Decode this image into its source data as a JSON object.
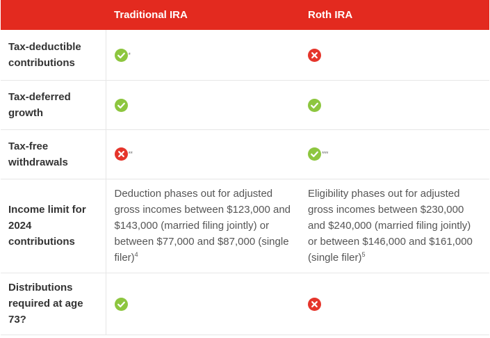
{
  "header": {
    "col1": "",
    "col2": "Traditional IRA",
    "col3": "Roth IRA"
  },
  "colors": {
    "header_bg": "#e32a1f",
    "check": "#8dc63f",
    "cross": "#e5352b"
  },
  "rows": [
    {
      "label": "Tax-deductible contributions",
      "traditional": {
        "icon": "check-icon",
        "note": "*"
      },
      "roth": {
        "icon": "cross-icon",
        "note": ""
      }
    },
    {
      "label": "Tax-deferred growth",
      "traditional": {
        "icon": "check-icon",
        "note": ""
      },
      "roth": {
        "icon": "check-icon",
        "note": ""
      }
    },
    {
      "label": "Tax-free withdrawals",
      "traditional": {
        "icon": "cross-icon",
        "note": "**"
      },
      "roth": {
        "icon": "check-icon",
        "note": "***"
      }
    },
    {
      "label": "Income limit for 2024 contributions",
      "traditional": {
        "text": "Deduction phases out for adjusted gross incomes between $123,000 and $143,000 (married filing jointly) or between $77,000 and $87,000 (single filer)",
        "footnote": "4"
      },
      "roth": {
        "text": "Eligibility phases out for adjusted gross incomes between $230,000 and $240,000 (married filing jointly) or between $146,000 and $161,000 (single filer)",
        "footnote": "5"
      }
    },
    {
      "label": "Distributions required at age 73?",
      "traditional": {
        "icon": "check-icon",
        "note": ""
      },
      "roth": {
        "icon": "cross-icon",
        "note": ""
      }
    }
  ]
}
